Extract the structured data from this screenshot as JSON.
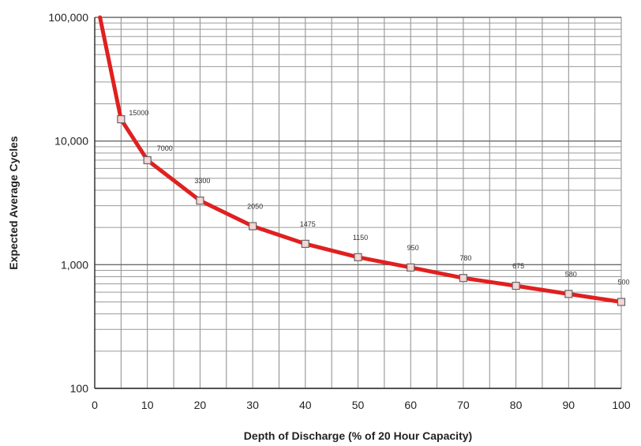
{
  "chart_data": {
    "type": "line",
    "xlabel": "Depth of Discharge (% of 20 Hour Capacity)",
    "ylabel": "Expected Average Cycles",
    "xlim": [
      0,
      100
    ],
    "ylim": [
      100,
      100000
    ],
    "yscale": "log",
    "grid": true,
    "x_ticks": [
      "0",
      "10",
      "20",
      "30",
      "40",
      "50",
      "60",
      "70",
      "80",
      "90",
      "100"
    ],
    "y_ticks": [
      "100",
      "1,000",
      "10,000",
      "100,000"
    ],
    "series": [
      {
        "color": "#e02020",
        "x": [
          1,
          5,
          10,
          20,
          30,
          40,
          50,
          60,
          70,
          80,
          90,
          100
        ],
        "y": [
          100000,
          15000,
          7000,
          3300,
          2050,
          1475,
          1150,
          950,
          780,
          675,
          580,
          500
        ]
      }
    ],
    "markers": [
      {
        "x": 5,
        "y": 15000,
        "label": "15000"
      },
      {
        "x": 10,
        "y": 7000,
        "label": "7000"
      },
      {
        "x": 20,
        "y": 3300,
        "label": "3300"
      },
      {
        "x": 30,
        "y": 2050,
        "label": "2050"
      },
      {
        "x": 40,
        "y": 1475,
        "label": "1475"
      },
      {
        "x": 50,
        "y": 1150,
        "label": "1150"
      },
      {
        "x": 60,
        "y": 950,
        "label": "950"
      },
      {
        "x": 70,
        "y": 780,
        "label": "780"
      },
      {
        "x": 80,
        "y": 675,
        "label": "675"
      },
      {
        "x": 90,
        "y": 580,
        "label": "580"
      },
      {
        "x": 100,
        "y": 500,
        "label": "500"
      }
    ]
  }
}
